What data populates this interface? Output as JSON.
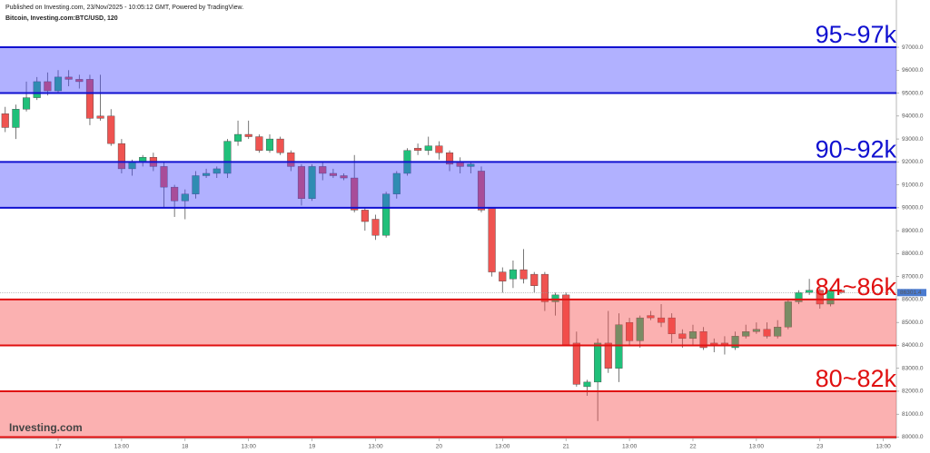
{
  "header": {
    "published": "Published on Investing.com, 23/Nov/2025 - 10:05:12 GMT, Powered by TradingView.",
    "symbol": "Bitcoin, Investing.com:BTC/USD, 120"
  },
  "logo": "Investing.com",
  "chart_data": {
    "type": "candlestick",
    "up_color": "#20c07a",
    "down_color": "#ef5350",
    "open": [
      94100,
      93500,
      94300,
      94800,
      95500,
      95100,
      95700,
      95600,
      95600,
      94000,
      94000,
      92800,
      91700,
      92000,
      92200,
      91800,
      90900,
      90300,
      90600,
      91400,
      91500,
      91500,
      92900,
      93200,
      93100,
      92500,
      93000,
      92400,
      91800,
      90400,
      91800,
      91500,
      91400,
      91300,
      89900,
      89500,
      88800,
      90600,
      91500,
      92600,
      92500,
      92700,
      92400,
      92000,
      91800,
      91600,
      90000,
      87200,
      86900,
      87300,
      87100,
      87100,
      85900,
      86200,
      84100,
      82200,
      82400,
      84100,
      83000,
      85000,
      84200,
      85300,
      85200,
      85200,
      84500,
      84300,
      84600,
      84100,
      84100,
      83900,
      84400,
      84600,
      84700,
      84400,
      84800,
      85900,
      86300,
      86400,
      85800,
      86400
    ],
    "high": [
      94400,
      94500,
      95500,
      95700,
      95900,
      96000,
      96000,
      95800,
      95800,
      95800,
      94300,
      93000,
      92100,
      92300,
      92400,
      92000,
      91000,
      90800,
      91600,
      91700,
      91800,
      93000,
      93800,
      93800,
      93200,
      93200,
      93100,
      92500,
      91900,
      91900,
      92000,
      91700,
      91500,
      92300,
      90000,
      89700,
      90700,
      91600,
      92600,
      92800,
      93100,
      92900,
      92500,
      92200,
      92000,
      91800,
      90000,
      87400,
      87700,
      88200,
      87200,
      87200,
      86300,
      86300,
      84600,
      82500,
      84300,
      85500,
      85400,
      85200,
      85300,
      85500,
      85800,
      85400,
      84700,
      84900,
      84800,
      84300,
      84400,
      84600,
      84900,
      85000,
      85000,
      85100,
      86000,
      86400,
      86900,
      86500,
      86500,
      86450
    ],
    "low": [
      93300,
      93000,
      94200,
      94700,
      94900,
      95000,
      95300,
      95200,
      93600,
      93800,
      92700,
      91500,
      91400,
      91800,
      91600,
      90000,
      89600,
      89500,
      90400,
      91300,
      91300,
      91300,
      92700,
      93000,
      92400,
      92400,
      92300,
      91600,
      90100,
      90300,
      91200,
      91300,
      91200,
      89800,
      89000,
      88600,
      88700,
      90400,
      91400,
      92300,
      92300,
      92100,
      91600,
      91500,
      91500,
      89800,
      87000,
      86300,
      86500,
      86700,
      86300,
      85500,
      85300,
      84000,
      82200,
      81800,
      80700,
      82800,
      82400,
      84000,
      83900,
      85100,
      84800,
      84100,
      83900,
      84000,
      83800,
      83700,
      83600,
      83800,
      84300,
      84500,
      84300,
      84300,
      84700,
      85800,
      86200,
      85600,
      85700,
      86250
    ],
    "close": [
      93500,
      94300,
      94800,
      95500,
      95100,
      95700,
      95600,
      95500,
      93900,
      93900,
      92800,
      91700,
      92000,
      92200,
      91800,
      90900,
      90300,
      90600,
      91400,
      91500,
      91700,
      92900,
      93200,
      93100,
      92500,
      93000,
      92400,
      91800,
      90400,
      91800,
      91500,
      91400,
      91300,
      89900,
      89400,
      88800,
      90600,
      91500,
      92500,
      92500,
      92700,
      92400,
      91900,
      91800,
      91900,
      89900,
      87200,
      86800,
      87300,
      86900,
      86600,
      85900,
      86200,
      84000,
      82300,
      82400,
      84100,
      83000,
      84900,
      84200,
      85200,
      85200,
      85000,
      84500,
      84300,
      84600,
      83900,
      84000,
      84000,
      84400,
      84600,
      84700,
      84400,
      84800,
      85900,
      86300,
      86400,
      85800,
      86400,
      86300
    ],
    "last_price": 86301.4,
    "bands": [
      {
        "label": "95~97k",
        "low": 95000,
        "high": 97000,
        "color": "#1010d0",
        "fill": "rgba(70,70,255,0.42)"
      },
      {
        "label": "90~92k",
        "low": 90000,
        "high": 92000,
        "color": "#1010d0",
        "fill": "rgba(70,70,255,0.42)"
      },
      {
        "label": "84~86k",
        "low": 84000,
        "high": 86000,
        "color": "#e01010",
        "fill": "rgba(245,70,70,0.42)"
      },
      {
        "label": "80~82k",
        "low": 80000,
        "high": 82000,
        "color": "#e01010",
        "fill": "rgba(245,70,70,0.42)"
      }
    ],
    "ylim": [
      79940,
      99060
    ],
    "yticks": [
      {
        "value": 80000,
        "label": "80000.0"
      },
      {
        "value": 81000,
        "label": "81000.0"
      },
      {
        "value": 82000,
        "label": "82000.0"
      },
      {
        "value": 83000,
        "label": "83000.0"
      },
      {
        "value": 84000,
        "label": "84000.0"
      },
      {
        "value": 85000,
        "label": "85000.0"
      },
      {
        "value": 86000,
        "label": "86000.0"
      },
      {
        "value": 87000,
        "label": "87000.0"
      },
      {
        "value": 88000,
        "label": "88000.0"
      },
      {
        "value": 89000,
        "label": "89000.0"
      },
      {
        "value": 90000,
        "label": "90000.0"
      },
      {
        "value": 91000,
        "label": "91000.0"
      },
      {
        "value": 92000,
        "label": "92000.0"
      },
      {
        "value": 93000,
        "label": "93000.0"
      },
      {
        "value": 94000,
        "label": "94000.0"
      },
      {
        "value": 95000,
        "label": "95000.0"
      },
      {
        "value": 96000,
        "label": "96000.0"
      },
      {
        "value": 97000,
        "label": "97000.0"
      }
    ],
    "xlim": [
      -0.494,
      84.23
    ],
    "xticks": [
      {
        "value": 5,
        "label": "17"
      },
      {
        "value": 11,
        "label": "13:00"
      },
      {
        "value": 17,
        "label": "18"
      },
      {
        "value": 23,
        "label": "13:00"
      },
      {
        "value": 29,
        "label": "19"
      },
      {
        "value": 35,
        "label": "13:00"
      },
      {
        "value": 41,
        "label": "20"
      },
      {
        "value": 47,
        "label": "13:00"
      },
      {
        "value": 53,
        "label": "21"
      },
      {
        "value": 59,
        "label": "13:00"
      },
      {
        "value": 65,
        "label": "22"
      },
      {
        "value": 71,
        "label": "13:00"
      },
      {
        "value": 77,
        "label": "23"
      },
      {
        "value": 83,
        "label": "13:00"
      }
    ]
  }
}
